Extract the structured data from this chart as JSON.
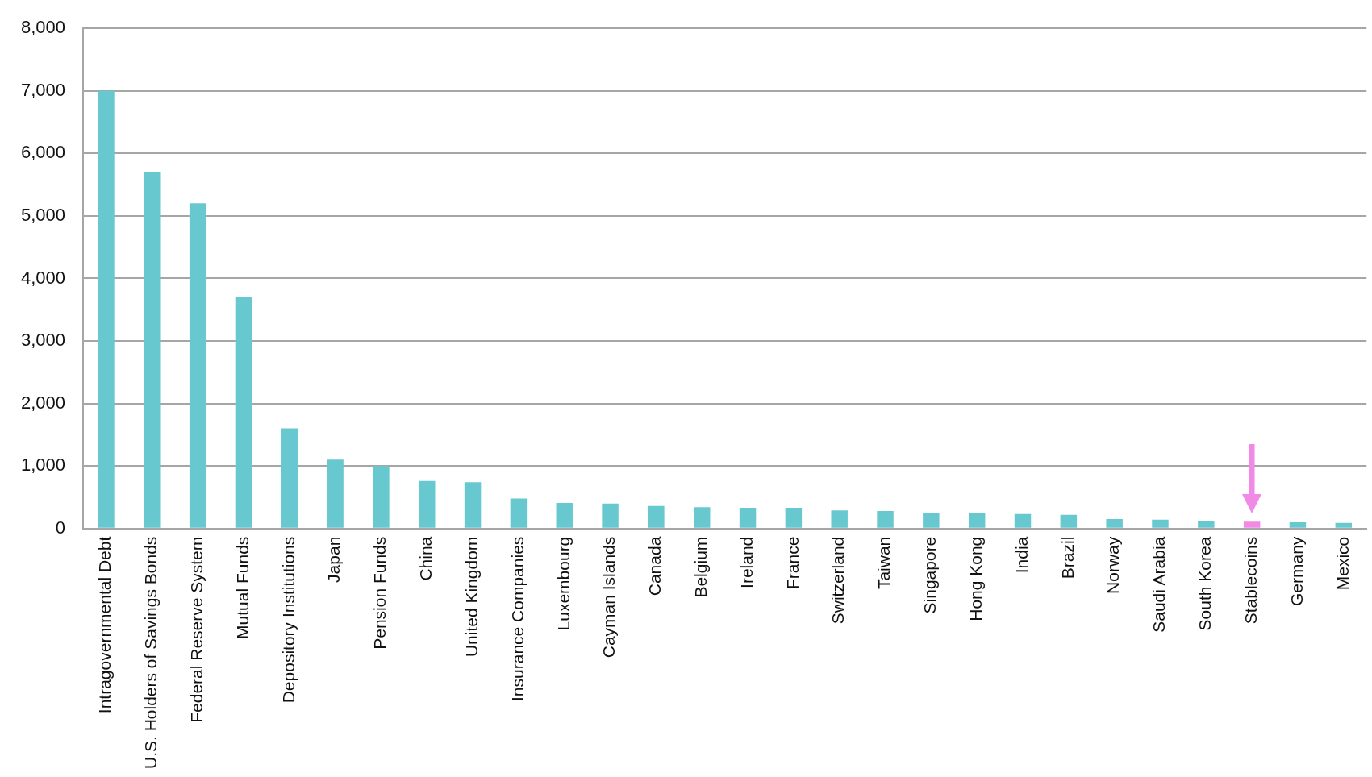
{
  "chart_data": {
    "type": "bar",
    "categories": [
      "Intragovernmental Debt",
      "U.S. Holders of Savings Bonds",
      "Federal Reserve System",
      "Mutual Funds",
      "Depository Institutions",
      "Japan",
      "Pension Funds",
      "China",
      "United Kingdom",
      "Insurance Companies",
      "Luxembourg",
      "Cayman Islands",
      "Canada",
      "Belgium",
      "Ireland",
      "France",
      "Switzerland",
      "Taiwan",
      "Singapore",
      "Hong Kong",
      "India",
      "Brazil",
      "Norway",
      "Saudi Arabia",
      "South Korea",
      "Stablecoins",
      "Germany",
      "Mexico"
    ],
    "values": [
      7000,
      5700,
      5200,
      3700,
      1600,
      1100,
      1000,
      760,
      740,
      480,
      410,
      400,
      360,
      340,
      330,
      330,
      290,
      280,
      250,
      240,
      230,
      220,
      150,
      140,
      120,
      110,
      100,
      90
    ],
    "colors": [
      "#68c8cf",
      "#68c8cf",
      "#68c8cf",
      "#68c8cf",
      "#68c8cf",
      "#68c8cf",
      "#68c8cf",
      "#68c8cf",
      "#68c8cf",
      "#68c8cf",
      "#68c8cf",
      "#68c8cf",
      "#68c8cf",
      "#68c8cf",
      "#68c8cf",
      "#68c8cf",
      "#68c8cf",
      "#68c8cf",
      "#68c8cf",
      "#68c8cf",
      "#68c8cf",
      "#68c8cf",
      "#68c8cf",
      "#68c8cf",
      "#68c8cf",
      "#f08ae6",
      "#68c8cf",
      "#68c8cf"
    ],
    "ylim": [
      0,
      8000
    ],
    "yticks": [
      0,
      {
        "value": 1000,
        "label": "1,000"
      },
      {
        "value": 2000,
        "label": "2,000"
      },
      {
        "value": 3000,
        "label": "3,000"
      },
      {
        "value": 4000,
        "label": "4,000"
      },
      {
        "value": 5000,
        "label": "5,000"
      },
      {
        "value": 6000,
        "label": "6,000"
      },
      {
        "value": 7000,
        "label": "7,000"
      },
      {
        "value": 8000,
        "label": "8,000"
      }
    ],
    "grid": "y",
    "legend": false
  }
}
